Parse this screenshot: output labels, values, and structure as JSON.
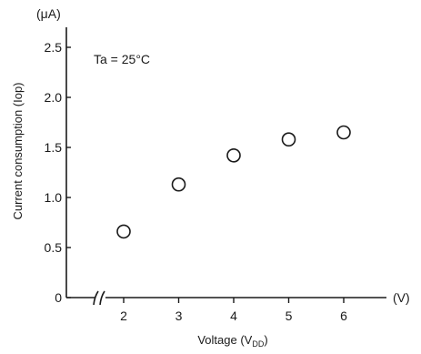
{
  "chart_data": {
    "type": "scatter",
    "title": "",
    "xlabel": "Voltage (V",
    "xlabel_sub": "DD",
    "xlabel_close": ")",
    "ylabel": "Current consumption (Iop)",
    "y_unit": "(μA)",
    "x_unit": "(V)",
    "annotation": "Ta = 25°C",
    "x_ticks": [
      "2",
      "3",
      "4",
      "5",
      "6"
    ],
    "y_ticks": [
      "0",
      "0.5",
      "1.0",
      "1.5",
      "2.0",
      "2.5"
    ],
    "xlim": [
      1,
      6.9
    ],
    "ylim": [
      0,
      2.7
    ],
    "x_axis_break": true,
    "points": [
      {
        "x": 2,
        "y": 0.66
      },
      {
        "x": 3,
        "y": 1.13
      },
      {
        "x": 4,
        "y": 1.42
      },
      {
        "x": 5,
        "y": 1.58
      },
      {
        "x": 6,
        "y": 1.65
      }
    ],
    "marker": "open-circle",
    "grid": false
  }
}
